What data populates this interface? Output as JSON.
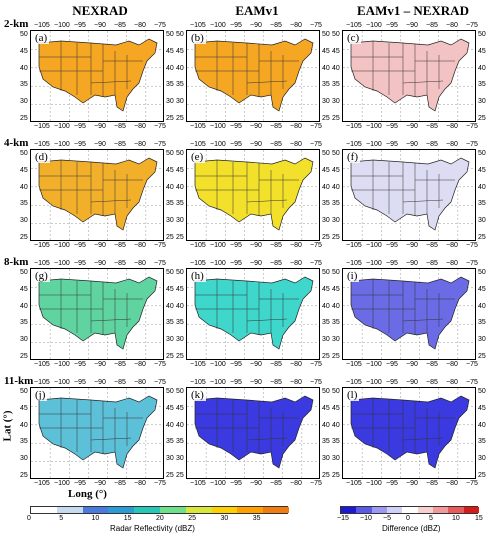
{
  "columns": [
    "NEXRAD",
    "EAMv1",
    "EAMv1 – NEXRAD"
  ],
  "rows": [
    "2-km",
    "4-km",
    "8-km",
    "11-km"
  ],
  "panel_labels": [
    "(a)",
    "(b)",
    "(c)",
    "(d)",
    "(e)",
    "(f)",
    "(g)",
    "(h)",
    "(i)",
    "(j)",
    "(k)",
    "(l)"
  ],
  "x_ticks": [
    "−105",
    "−100",
    "−95",
    "−90",
    "−85",
    "−80",
    "−75"
  ],
  "y_ticks": [
    "50",
    "45",
    "40",
    "35",
    "30",
    "25"
  ],
  "axis": {
    "lat_label": "Lat (°)",
    "long_label": "Long (°)"
  },
  "colorbar_reflectivity": {
    "label": "Radar Reflectivity (dBZ)",
    "ticks": [
      "0",
      "5",
      "10",
      "15",
      "20",
      "25",
      "30",
      "35"
    ],
    "colors": [
      "#ffffff",
      "#c6dbef",
      "#4a7bdc",
      "#2b9bd6",
      "#27c7b8",
      "#6ee08a",
      "#d7e83a",
      "#ffd000",
      "#ffa000",
      "#f07b10"
    ]
  },
  "colorbar_difference": {
    "label": "Difference (dBZ)",
    "ticks": [
      "−15",
      "−10",
      "−5",
      "0",
      "5",
      "10",
      "15"
    ],
    "colors": [
      "#1a1ad6",
      "#5a5ae8",
      "#9a9af0",
      "#d0d0f8",
      "#ffffff",
      "#f8d0d0",
      "#f09a9a",
      "#e85a5a",
      "#d61a1a"
    ]
  },
  "panel_fill": {
    "a": "#f5a623",
    "b": "#f5a623",
    "c": "#f3c2c2",
    "d": "#f2b02a",
    "e": "#f2e02a",
    "f": "#dcdcf2",
    "g": "#5fd4a0",
    "h": "#3fd6cc",
    "i": "#6b6be6",
    "j": "#5cc0d8",
    "k": "#3a3ae0",
    "l": "#3a3ae0"
  }
}
